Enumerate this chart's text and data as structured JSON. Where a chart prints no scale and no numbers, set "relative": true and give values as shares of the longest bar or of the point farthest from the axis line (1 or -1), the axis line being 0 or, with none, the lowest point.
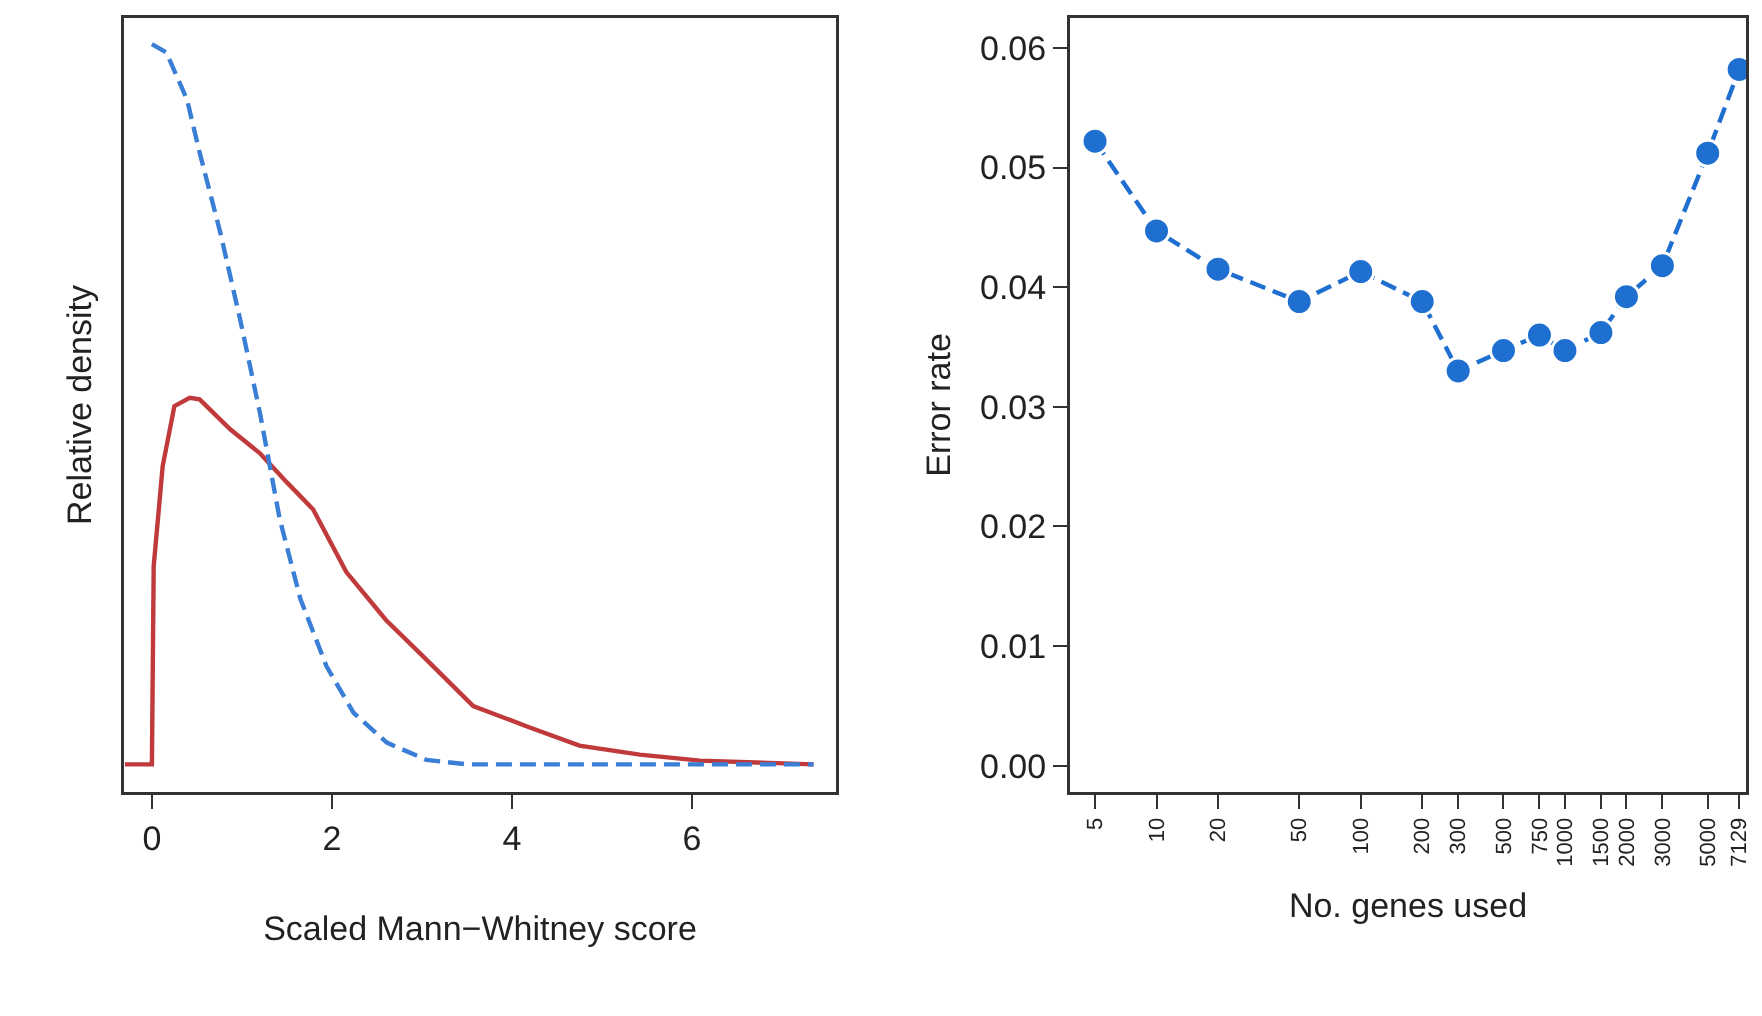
{
  "chart_data": [
    {
      "type": "line",
      "relative": true,
      "xlabel": "Scaled Mann−Whitney score",
      "ylabel": "Relative density",
      "xlim": [
        -0.31,
        7.6
      ],
      "xticks": [
        0,
        2,
        4,
        6
      ],
      "tick_labels": "x",
      "series": [
        {
          "color": "#c0393b",
          "line_style": "solid",
          "x": [
            -0.3,
            0,
            0.02,
            0.12,
            0.25,
            0.42,
            0.53,
            0.87,
            1.2,
            1.5,
            1.79,
            2.16,
            2.6,
            3.05,
            3.57,
            4.16,
            4.75,
            5.42,
            6.09,
            7.35
          ],
          "values": [
            0.037,
            0.037,
            0.302,
            0.436,
            0.516,
            0.527,
            0.525,
            0.485,
            0.453,
            0.414,
            0.378,
            0.294,
            0.23,
            0.177,
            0.115,
            0.088,
            0.062,
            0.05,
            0.042,
            0.037
          ]
        },
        {
          "color": "#3a7fd5",
          "line_style": "dashed",
          "x": [
            0,
            0.16,
            0.39,
            0.53,
            0.76,
            0.98,
            1.2,
            1.42,
            1.65,
            1.94,
            2.24,
            2.61,
            3.05,
            3.5,
            7.35
          ],
          "values": [
            1,
            0.989,
            0.926,
            0.855,
            0.748,
            0.632,
            0.507,
            0.365,
            0.258,
            0.168,
            0.106,
            0.066,
            0.043,
            0.037,
            0.037
          ]
        }
      ]
    },
    {
      "type": "line",
      "log": "x",
      "xlabel": "No. genes used",
      "ylabel": "Error rate",
      "xlim": [
        3.77,
        7700
      ],
      "xticks": [
        5,
        10,
        20,
        50,
        100,
        200,
        300,
        500,
        750,
        1000,
        1500,
        2000,
        3000,
        5000,
        7129
      ],
      "ylim": [
        -0.0022,
        0.0625
      ],
      "yticks": [
        {
          "value": 0,
          "label": "0.00"
        },
        {
          "value": 0.01,
          "label": "0.01"
        },
        {
          "value": 0.02,
          "label": "0.02"
        },
        {
          "value": 0.03,
          "label": "0.03"
        },
        {
          "value": 0.04,
          "label": "0.04"
        },
        {
          "value": 0.05,
          "label": "0.05"
        },
        {
          "value": 0.06,
          "label": "0.06"
        }
      ],
      "marker": "circle",
      "line_style": "dashed",
      "series": [
        {
          "color": "#1f6fd0",
          "x": [
            5,
            10,
            20,
            50,
            100,
            200,
            300,
            500,
            750,
            1000,
            1500,
            2000,
            3000,
            5000,
            7129
          ],
          "values": [
            0.0522,
            0.0447,
            0.0415,
            0.0388,
            0.0413,
            0.0388,
            0.033,
            0.0347,
            0.036,
            0.0347,
            0.0362,
            0.0392,
            0.0418,
            0.0512,
            0.0582
          ]
        }
      ]
    }
  ]
}
